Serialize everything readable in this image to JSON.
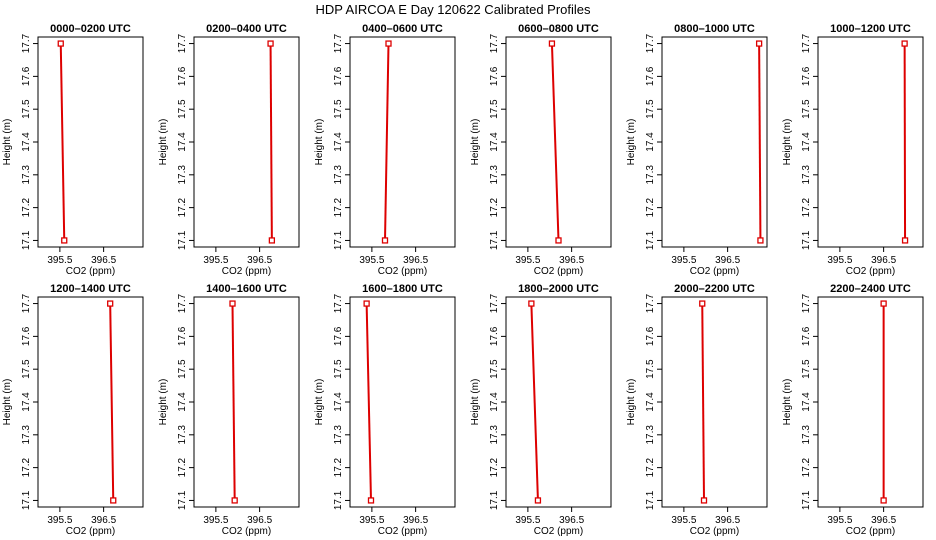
{
  "figure": {
    "title": "HDP AIRCOA E  Day 120622  Calibrated Profiles",
    "xlabel": "CO2 (ppm)",
    "ylabel": "Height (m)"
  },
  "style": {
    "line_color": "#dd0000",
    "marker_color": "#dd0000",
    "axis_color": "#000000",
    "background": "#ffffff"
  },
  "chart_data": {
    "type": "line",
    "layout": "2 rows x 6 columns of small multiples",
    "xlabel": "CO2 (ppm)",
    "ylabel": "Height (m)",
    "xlim": [
      395.0,
      397.4
    ],
    "ylim": [
      17.08,
      17.72
    ],
    "xticks": [
      395.5,
      396.5
    ],
    "xtick_labels": [
      "395.5",
      "396.5"
    ],
    "yticks": [
      17.1,
      17.2,
      17.3,
      17.4,
      17.5,
      17.6,
      17.7
    ],
    "ytick_labels": [
      "17.1",
      "17.2",
      "17.3",
      "17.4",
      "17.5",
      "17.6",
      "17.7"
    ],
    "grid": false,
    "panels": [
      {
        "title": "0000–0200 UTC",
        "points": [
          {
            "x": 395.52,
            "y": 17.7
          },
          {
            "x": 395.6,
            "y": 17.1
          }
        ]
      },
      {
        "title": "0200–0400 UTC",
        "points": [
          {
            "x": 396.75,
            "y": 17.7
          },
          {
            "x": 396.78,
            "y": 17.1
          }
        ]
      },
      {
        "title": "0400–0600 UTC",
        "points": [
          {
            "x": 395.88,
            "y": 17.7
          },
          {
            "x": 395.8,
            "y": 17.1
          }
        ]
      },
      {
        "title": "0600–0800 UTC",
        "points": [
          {
            "x": 396.05,
            "y": 17.7
          },
          {
            "x": 396.2,
            "y": 17.1
          }
        ]
      },
      {
        "title": "0800–1000 UTC",
        "points": [
          {
            "x": 397.22,
            "y": 17.7
          },
          {
            "x": 397.25,
            "y": 17.1
          }
        ]
      },
      {
        "title": "1000–1200 UTC",
        "points": [
          {
            "x": 396.98,
            "y": 17.7
          },
          {
            "x": 396.99,
            "y": 17.1
          }
        ]
      },
      {
        "title": "1200–1400 UTC",
        "points": [
          {
            "x": 396.65,
            "y": 17.7
          },
          {
            "x": 396.72,
            "y": 17.1
          }
        ]
      },
      {
        "title": "1400–1600 UTC",
        "points": [
          {
            "x": 395.88,
            "y": 17.7
          },
          {
            "x": 395.93,
            "y": 17.1
          }
        ]
      },
      {
        "title": "1600–1800 UTC",
        "points": [
          {
            "x": 395.38,
            "y": 17.7
          },
          {
            "x": 395.48,
            "y": 17.1
          }
        ]
      },
      {
        "title": "1800–2000 UTC",
        "points": [
          {
            "x": 395.58,
            "y": 17.7
          },
          {
            "x": 395.73,
            "y": 17.1
          }
        ]
      },
      {
        "title": "2000–2200 UTC",
        "points": [
          {
            "x": 395.92,
            "y": 17.7
          },
          {
            "x": 395.96,
            "y": 17.1
          }
        ]
      },
      {
        "title": "2200–2400 UTC",
        "points": [
          {
            "x": 396.5,
            "y": 17.7
          },
          {
            "x": 396.5,
            "y": 17.1
          }
        ]
      }
    ]
  }
}
